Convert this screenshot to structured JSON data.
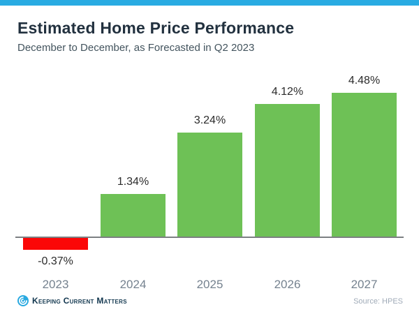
{
  "header": {
    "title": "Estimated Home Price Performance",
    "subtitle": "December to December, as Forecasted in Q2 2023"
  },
  "chart_data": {
    "type": "bar",
    "categories": [
      "2023",
      "2024",
      "2025",
      "2026",
      "2027"
    ],
    "values": [
      -0.37,
      1.34,
      3.24,
      4.12,
      4.48
    ],
    "value_labels": [
      "-0.37%",
      "1.34%",
      "3.24%",
      "4.12%",
      "4.48%"
    ],
    "title": "Estimated Home Price Performance",
    "subtitle": "December to December, as Forecasted in Q2 2023",
    "xlabel": "",
    "ylabel": "",
    "ylim": [
      -1,
      5
    ],
    "grid": false,
    "legend": false,
    "colors": {
      "positive": "#6EC156",
      "negative": "#FB0707"
    }
  },
  "footer": {
    "brand": "Keeping Current Matters",
    "source": "Source: HPES"
  },
  "accent": {
    "top_bar_color": "#29ABE2"
  }
}
